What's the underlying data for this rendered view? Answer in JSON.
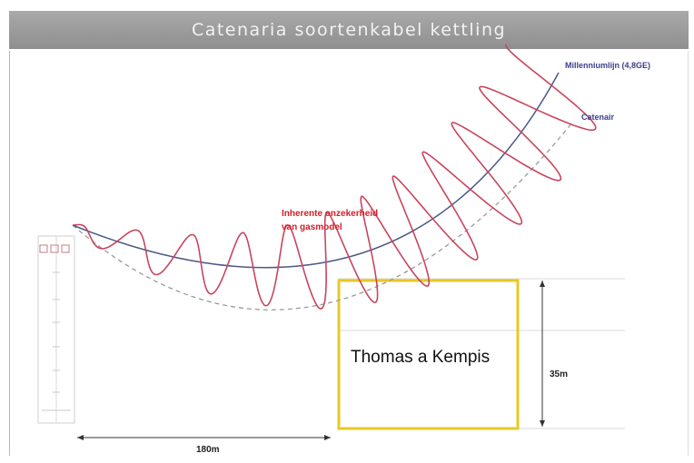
{
  "title": "Catenaria soortenkabel kettling",
  "labels": {
    "wire_label": "Millenniumlijn (4,8GE)",
    "catenary_label": "Catenair",
    "uncertainty_line1": "Inherente onzekerheid",
    "uncertainty_line2": "van gasmodel",
    "building_name": "Thomas a Kempis",
    "height_dim": "35m",
    "width_dim": "180m"
  },
  "colors": {
    "title_bg": "#999999",
    "wire": "#4a5a86",
    "catenary_dashed": "#9a9a9a",
    "oscillation": "#c8455e",
    "uncertainty_text": "#d0202a",
    "building_box": "#e8c826",
    "label_blue": "#3b3f8c"
  },
  "icons": {
    "left_scale": "ruler-scale-icon"
  }
}
